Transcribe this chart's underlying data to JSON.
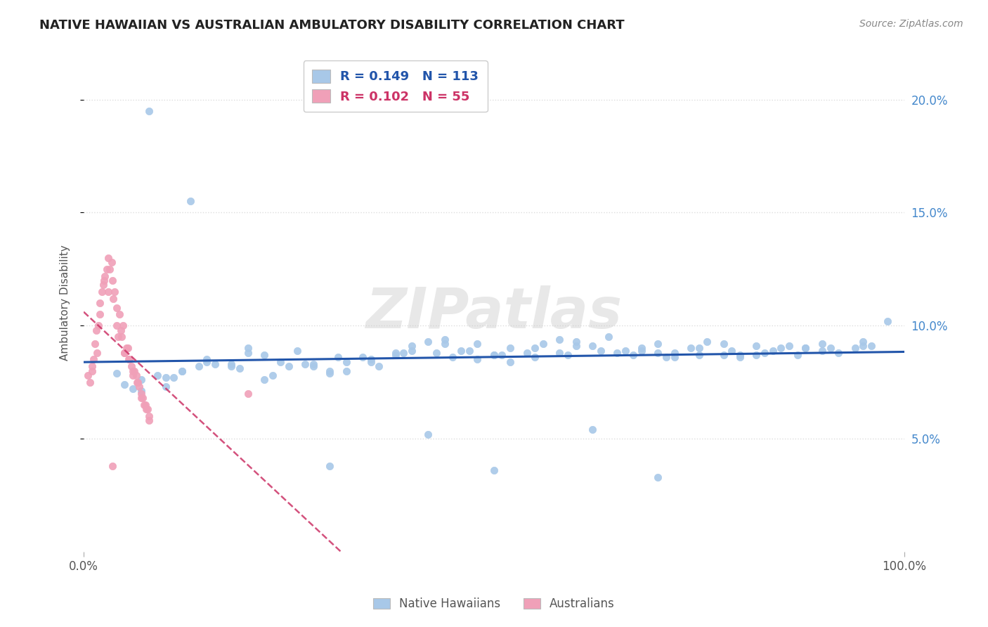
{
  "title": "NATIVE HAWAIIAN VS AUSTRALIAN AMBULATORY DISABILITY CORRELATION CHART",
  "source_text": "Source: ZipAtlas.com",
  "ylabel": "Ambulatory Disability",
  "background_color": "#ffffff",
  "grid_color": "#dddddd",
  "nh_color": "#a8c8e8",
  "au_color": "#f0a0b8",
  "nh_line_color": "#2255aa",
  "au_line_color": "#cc3366",
  "nh_R": 0.149,
  "nh_N": 113,
  "au_R": 0.102,
  "au_N": 55,
  "xlim": [
    0.0,
    1.0
  ],
  "ylim": [
    0.0,
    0.22
  ],
  "nh_scatter_x": [
    0.08,
    0.13,
    0.05,
    0.06,
    0.07,
    0.09,
    0.1,
    0.12,
    0.14,
    0.15,
    0.18,
    0.2,
    0.22,
    0.24,
    0.26,
    0.28,
    0.3,
    0.32,
    0.34,
    0.36,
    0.38,
    0.4,
    0.42,
    0.44,
    0.46,
    0.48,
    0.5,
    0.52,
    0.54,
    0.56,
    0.58,
    0.6,
    0.62,
    0.64,
    0.66,
    0.68,
    0.7,
    0.72,
    0.74,
    0.76,
    0.78,
    0.8,
    0.82,
    0.84,
    0.86,
    0.88,
    0.9,
    0.92,
    0.94,
    0.96,
    0.98,
    0.04,
    0.07,
    0.11,
    0.16,
    0.19,
    0.23,
    0.27,
    0.31,
    0.35,
    0.39,
    0.43,
    0.47,
    0.51,
    0.55,
    0.59,
    0.63,
    0.67,
    0.71,
    0.75,
    0.79,
    0.83,
    0.87,
    0.91,
    0.95,
    0.1,
    0.15,
    0.2,
    0.25,
    0.3,
    0.35,
    0.4,
    0.45,
    0.5,
    0.55,
    0.6,
    0.65,
    0.7,
    0.75,
    0.8,
    0.85,
    0.9,
    0.95,
    0.12,
    0.18,
    0.28,
    0.38,
    0.48,
    0.58,
    0.68,
    0.78,
    0.88,
    0.5,
    0.3,
    0.7,
    0.42,
    0.62,
    0.22,
    0.82,
    0.52,
    0.32,
    0.72,
    0.44
  ],
  "nh_scatter_y": [
    0.195,
    0.155,
    0.074,
    0.072,
    0.076,
    0.078,
    0.073,
    0.08,
    0.082,
    0.085,
    0.083,
    0.09,
    0.087,
    0.084,
    0.089,
    0.082,
    0.08,
    0.084,
    0.086,
    0.082,
    0.088,
    0.091,
    0.093,
    0.094,
    0.089,
    0.092,
    0.087,
    0.09,
    0.088,
    0.092,
    0.094,
    0.093,
    0.091,
    0.095,
    0.089,
    0.09,
    0.092,
    0.088,
    0.09,
    0.093,
    0.092,
    0.087,
    0.091,
    0.089,
    0.091,
    0.09,
    0.092,
    0.088,
    0.09,
    0.091,
    0.102,
    0.079,
    0.071,
    0.077,
    0.083,
    0.081,
    0.078,
    0.083,
    0.086,
    0.085,
    0.088,
    0.088,
    0.089,
    0.087,
    0.086,
    0.087,
    0.089,
    0.087,
    0.086,
    0.09,
    0.089,
    0.088,
    0.087,
    0.09,
    0.093,
    0.077,
    0.084,
    0.088,
    0.082,
    0.079,
    0.084,
    0.089,
    0.086,
    0.087,
    0.09,
    0.091,
    0.088,
    0.088,
    0.087,
    0.086,
    0.09,
    0.089,
    0.091,
    0.08,
    0.082,
    0.083,
    0.087,
    0.085,
    0.088,
    0.089,
    0.087,
    0.09,
    0.036,
    0.038,
    0.033,
    0.052,
    0.054,
    0.076,
    0.087,
    0.084,
    0.08,
    0.086,
    0.092
  ],
  "au_scatter_x": [
    0.005,
    0.01,
    0.012,
    0.015,
    0.018,
    0.02,
    0.022,
    0.025,
    0.028,
    0.03,
    0.032,
    0.035,
    0.038,
    0.04,
    0.042,
    0.045,
    0.048,
    0.05,
    0.052,
    0.055,
    0.058,
    0.06,
    0.062,
    0.065,
    0.068,
    0.07,
    0.072,
    0.075,
    0.078,
    0.08,
    0.008,
    0.014,
    0.024,
    0.034,
    0.044,
    0.054,
    0.064,
    0.074,
    0.016,
    0.026,
    0.036,
    0.046,
    0.056,
    0.066,
    0.076,
    0.01,
    0.02,
    0.03,
    0.04,
    0.05,
    0.06,
    0.07,
    0.08,
    0.2,
    0.035
  ],
  "au_scatter_y": [
    0.078,
    0.082,
    0.085,
    0.098,
    0.1,
    0.11,
    0.115,
    0.12,
    0.125,
    0.13,
    0.125,
    0.12,
    0.115,
    0.108,
    0.095,
    0.098,
    0.1,
    0.088,
    0.09,
    0.085,
    0.082,
    0.078,
    0.08,
    0.075,
    0.073,
    0.07,
    0.068,
    0.065,
    0.063,
    0.06,
    0.075,
    0.092,
    0.118,
    0.128,
    0.105,
    0.09,
    0.078,
    0.065,
    0.088,
    0.122,
    0.112,
    0.095,
    0.085,
    0.075,
    0.063,
    0.08,
    0.105,
    0.115,
    0.1,
    0.088,
    0.08,
    0.068,
    0.058,
    0.07,
    0.038
  ]
}
